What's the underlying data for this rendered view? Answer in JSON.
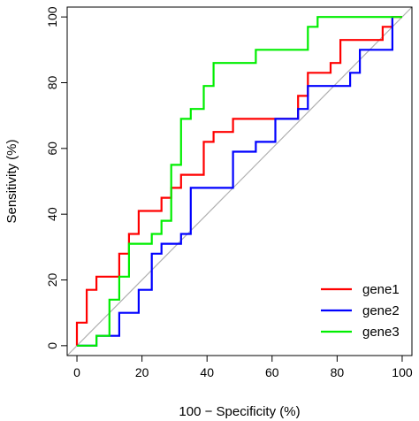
{
  "chart_data": {
    "type": "line",
    "title": "",
    "xlabel": "100 − Specificity (%)",
    "ylabel": "Sensitivity (%)",
    "xlim": [
      -3,
      103
    ],
    "ylim": [
      -3,
      103
    ],
    "xticks": [
      0,
      20,
      40,
      60,
      80,
      100
    ],
    "yticks": [
      0,
      20,
      40,
      60,
      80,
      100
    ],
    "grid": false,
    "diagonal_reference": true,
    "legend_position": "bottom-right",
    "series": [
      {
        "name": "gene1",
        "color": "#ff0000",
        "x": [
          0,
          0,
          3,
          3,
          6,
          6,
          13,
          13,
          16,
          16,
          19,
          19,
          26,
          26,
          29,
          29,
          32,
          32,
          39,
          39,
          42,
          42,
          48,
          48,
          68,
          68,
          71,
          71,
          78,
          78,
          81,
          81,
          94,
          94,
          97,
          97,
          100
        ],
        "y": [
          0,
          7,
          7,
          17,
          17,
          21,
          21,
          28,
          28,
          34,
          34,
          41,
          41,
          45,
          45,
          48,
          48,
          52,
          52,
          62,
          62,
          65,
          65,
          69,
          69,
          76,
          76,
          83,
          83,
          86,
          86,
          93,
          93,
          97,
          97,
          100,
          100
        ]
      },
      {
        "name": "gene2",
        "color": "#0000ff",
        "x": [
          0,
          6,
          6,
          13,
          13,
          19,
          19,
          23,
          23,
          26,
          26,
          32,
          32,
          35,
          35,
          48,
          48,
          55,
          55,
          61,
          61,
          68,
          68,
          71,
          71,
          84,
          84,
          87,
          87,
          97,
          97
        ],
        "y": [
          0,
          0,
          3,
          3,
          10,
          10,
          17,
          17,
          28,
          28,
          31,
          31,
          34,
          34,
          48,
          48,
          59,
          59,
          62,
          62,
          69,
          69,
          72,
          72,
          79,
          79,
          83,
          83,
          90,
          90,
          100
        ]
      },
      {
        "name": "gene3",
        "color": "#00ee00",
        "x": [
          0,
          6,
          6,
          10,
          10,
          13,
          13,
          16,
          16,
          23,
          23,
          26,
          26,
          29,
          29,
          32,
          32,
          35,
          35,
          39,
          39,
          42,
          42,
          55,
          55,
          71,
          71,
          74,
          74,
          100
        ],
        "y": [
          0,
          0,
          3,
          3,
          14,
          14,
          21,
          21,
          31,
          31,
          34,
          34,
          38,
          38,
          55,
          55,
          69,
          69,
          72,
          72,
          79,
          79,
          86,
          86,
          90,
          90,
          97,
          97,
          100,
          100
        ]
      }
    ]
  }
}
